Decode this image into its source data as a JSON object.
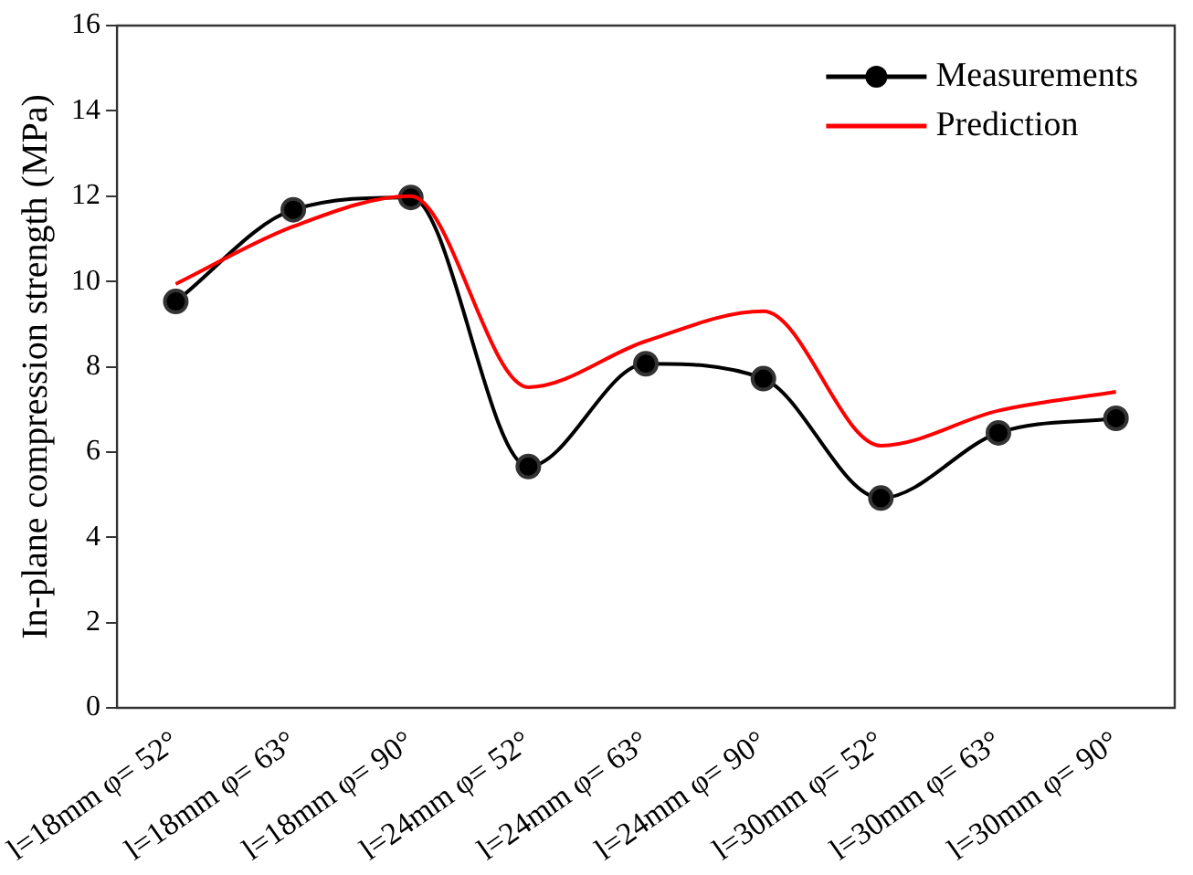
{
  "chart_data": {
    "type": "line",
    "ylabel": "In-plane compression strength (MPa)",
    "categories": [
      "l=18mm φ= 52°",
      "l=18mm φ= 63°",
      "l=18mm φ= 90°",
      "l=24mm φ= 52°",
      "l=24mm φ= 63°",
      "l=24mm φ= 90°",
      "l=30mm φ= 52°",
      "l=30mm φ= 63°",
      "l=30mm φ= 90°"
    ],
    "series": [
      {
        "name": "Measurements",
        "color": "#000000",
        "marker": "circle",
        "values": [
          9.53,
          11.68,
          11.97,
          5.66,
          8.07,
          7.72,
          4.92,
          6.45,
          6.79
        ]
      },
      {
        "name": "Prediction",
        "color": "#ff0000",
        "marker": "none",
        "values": [
          9.94,
          11.29,
          12.0,
          7.52,
          8.6,
          9.3,
          6.15,
          6.97,
          7.41
        ]
      }
    ],
    "ylim": [
      0,
      16
    ],
    "yticks": [
      0,
      2,
      4,
      6,
      8,
      10,
      12,
      14,
      16
    ],
    "grid": false,
    "legend": "top right"
  }
}
